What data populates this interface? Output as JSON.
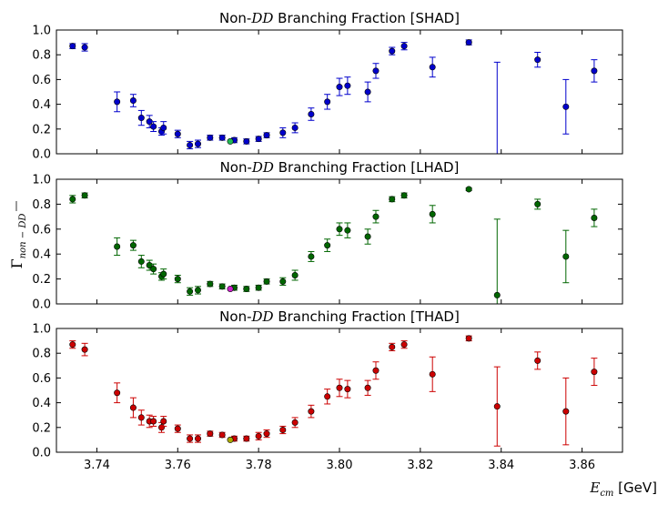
{
  "chart_data": [
    {
      "type": "scatter",
      "title": "Non-DD Branching Fraction [SHAD]",
      "title_main": "Non-",
      "title_math": "DD",
      "title_tail": " Branching Fraction [SHAD]",
      "color": "#0000cc",
      "xlim": [
        3.73,
        3.87
      ],
      "ylim": [
        0.0,
        1.0
      ],
      "yticks": [
        "0.0",
        "0.2",
        "0.4",
        "0.6",
        "0.8",
        "1.0"
      ],
      "highlight": {
        "x": 3.773,
        "y": 0.1,
        "color": "#22bb55"
      },
      "points": [
        {
          "x": 3.734,
          "y": 0.87,
          "err": 0.02
        },
        {
          "x": 3.737,
          "y": 0.86,
          "err": 0.03
        },
        {
          "x": 3.745,
          "y": 0.42,
          "err": 0.08
        },
        {
          "x": 3.749,
          "y": 0.43,
          "err": 0.05
        },
        {
          "x": 3.751,
          "y": 0.29,
          "err": 0.06
        },
        {
          "x": 3.753,
          "y": 0.26,
          "err": 0.05
        },
        {
          "x": 3.754,
          "y": 0.22,
          "err": 0.04
        },
        {
          "x": 3.756,
          "y": 0.18,
          "err": 0.03
        },
        {
          "x": 3.7565,
          "y": 0.21,
          "err": 0.05
        },
        {
          "x": 3.76,
          "y": 0.16,
          "err": 0.03
        },
        {
          "x": 3.763,
          "y": 0.07,
          "err": 0.03
        },
        {
          "x": 3.765,
          "y": 0.08,
          "err": 0.03
        },
        {
          "x": 3.768,
          "y": 0.13,
          "err": 0.02
        },
        {
          "x": 3.771,
          "y": 0.13,
          "err": 0.02
        },
        {
          "x": 3.774,
          "y": 0.11,
          "err": 0.02
        },
        {
          "x": 3.777,
          "y": 0.1,
          "err": 0.02
        },
        {
          "x": 3.78,
          "y": 0.12,
          "err": 0.02
        },
        {
          "x": 3.782,
          "y": 0.15,
          "err": 0.02
        },
        {
          "x": 3.786,
          "y": 0.17,
          "err": 0.04
        },
        {
          "x": 3.789,
          "y": 0.21,
          "err": 0.04
        },
        {
          "x": 3.793,
          "y": 0.32,
          "err": 0.05
        },
        {
          "x": 3.797,
          "y": 0.42,
          "err": 0.06
        },
        {
          "x": 3.8,
          "y": 0.54,
          "err": 0.07
        },
        {
          "x": 3.802,
          "y": 0.55,
          "err": 0.07
        },
        {
          "x": 3.807,
          "y": 0.5,
          "err": 0.08
        },
        {
          "x": 3.809,
          "y": 0.67,
          "err": 0.06
        },
        {
          "x": 3.813,
          "y": 0.83,
          "err": 0.03
        },
        {
          "x": 3.816,
          "y": 0.87,
          "err": 0.03
        },
        {
          "x": 3.823,
          "y": 0.7,
          "err": 0.08
        },
        {
          "x": 3.832,
          "y": 0.9,
          "err": 0.02
        },
        {
          "x": 3.839,
          "y": -0.1,
          "err": 0.84
        },
        {
          "x": 3.849,
          "y": 0.76,
          "err": 0.06
        },
        {
          "x": 3.856,
          "y": 0.38,
          "err": 0.22
        },
        {
          "x": 3.863,
          "y": 0.67,
          "err": 0.09
        }
      ]
    },
    {
      "type": "scatter",
      "title": "Non-DD Branching Fraction [LHAD]",
      "title_main": "Non-",
      "title_math": "DD",
      "title_tail": " Branching Fraction [LHAD]",
      "color": "#006600",
      "xlim": [
        3.73,
        3.87
      ],
      "ylim": [
        0.0,
        1.0
      ],
      "yticks": [
        "0.0",
        "0.2",
        "0.4",
        "0.6",
        "0.8",
        "1.0"
      ],
      "highlight": {
        "x": 3.773,
        "y": 0.12,
        "color": "#cc22cc"
      },
      "points": [
        {
          "x": 3.734,
          "y": 0.84,
          "err": 0.03
        },
        {
          "x": 3.737,
          "y": 0.87,
          "err": 0.02
        },
        {
          "x": 3.745,
          "y": 0.46,
          "err": 0.07
        },
        {
          "x": 3.749,
          "y": 0.47,
          "err": 0.04
        },
        {
          "x": 3.751,
          "y": 0.34,
          "err": 0.05
        },
        {
          "x": 3.753,
          "y": 0.31,
          "err": 0.04
        },
        {
          "x": 3.754,
          "y": 0.28,
          "err": 0.04
        },
        {
          "x": 3.756,
          "y": 0.22,
          "err": 0.03
        },
        {
          "x": 3.7565,
          "y": 0.24,
          "err": 0.04
        },
        {
          "x": 3.76,
          "y": 0.2,
          "err": 0.03
        },
        {
          "x": 3.763,
          "y": 0.1,
          "err": 0.03
        },
        {
          "x": 3.765,
          "y": 0.11,
          "err": 0.03
        },
        {
          "x": 3.768,
          "y": 0.16,
          "err": 0.02
        },
        {
          "x": 3.771,
          "y": 0.14,
          "err": 0.02
        },
        {
          "x": 3.774,
          "y": 0.13,
          "err": 0.02
        },
        {
          "x": 3.777,
          "y": 0.12,
          "err": 0.02
        },
        {
          "x": 3.78,
          "y": 0.13,
          "err": 0.02
        },
        {
          "x": 3.782,
          "y": 0.18,
          "err": 0.02
        },
        {
          "x": 3.786,
          "y": 0.18,
          "err": 0.03
        },
        {
          "x": 3.789,
          "y": 0.23,
          "err": 0.04
        },
        {
          "x": 3.793,
          "y": 0.38,
          "err": 0.04
        },
        {
          "x": 3.797,
          "y": 0.47,
          "err": 0.05
        },
        {
          "x": 3.8,
          "y": 0.6,
          "err": 0.05
        },
        {
          "x": 3.802,
          "y": 0.59,
          "err": 0.06
        },
        {
          "x": 3.807,
          "y": 0.54,
          "err": 0.06
        },
        {
          "x": 3.809,
          "y": 0.7,
          "err": 0.05
        },
        {
          "x": 3.813,
          "y": 0.84,
          "err": 0.02
        },
        {
          "x": 3.816,
          "y": 0.87,
          "err": 0.02
        },
        {
          "x": 3.823,
          "y": 0.72,
          "err": 0.07
        },
        {
          "x": 3.832,
          "y": 0.92,
          "err": 0.01
        },
        {
          "x": 3.839,
          "y": 0.07,
          "err": 0.61
        },
        {
          "x": 3.849,
          "y": 0.8,
          "err": 0.04
        },
        {
          "x": 3.856,
          "y": 0.38,
          "err": 0.21
        },
        {
          "x": 3.863,
          "y": 0.69,
          "err": 0.07
        }
      ]
    },
    {
      "type": "scatter",
      "title": "Non-DD Branching Fraction [THAD]",
      "title_main": "Non-",
      "title_math": "DD",
      "title_tail": " Branching Fraction [THAD]",
      "color": "#cc0000",
      "xlim": [
        3.73,
        3.87
      ],
      "ylim": [
        0.0,
        1.0
      ],
      "yticks": [
        "0.0",
        "0.2",
        "0.4",
        "0.6",
        "0.8",
        "1.0"
      ],
      "xticks": [
        "3.74",
        "3.76",
        "3.78",
        "3.80",
        "3.82",
        "3.84",
        "3.86"
      ],
      "highlight": {
        "x": 3.773,
        "y": 0.1,
        "color": "#aaaa00"
      },
      "points": [
        {
          "x": 3.734,
          "y": 0.87,
          "err": 0.03
        },
        {
          "x": 3.737,
          "y": 0.83,
          "err": 0.05
        },
        {
          "x": 3.745,
          "y": 0.48,
          "err": 0.08
        },
        {
          "x": 3.749,
          "y": 0.36,
          "err": 0.08
        },
        {
          "x": 3.751,
          "y": 0.28,
          "err": 0.06
        },
        {
          "x": 3.753,
          "y": 0.25,
          "err": 0.05
        },
        {
          "x": 3.754,
          "y": 0.25,
          "err": 0.04
        },
        {
          "x": 3.756,
          "y": 0.2,
          "err": 0.04
        },
        {
          "x": 3.7565,
          "y": 0.25,
          "err": 0.04
        },
        {
          "x": 3.76,
          "y": 0.19,
          "err": 0.03
        },
        {
          "x": 3.763,
          "y": 0.11,
          "err": 0.03
        },
        {
          "x": 3.765,
          "y": 0.11,
          "err": 0.03
        },
        {
          "x": 3.768,
          "y": 0.15,
          "err": 0.02
        },
        {
          "x": 3.771,
          "y": 0.14,
          "err": 0.02
        },
        {
          "x": 3.774,
          "y": 0.11,
          "err": 0.02
        },
        {
          "x": 3.777,
          "y": 0.11,
          "err": 0.02
        },
        {
          "x": 3.78,
          "y": 0.13,
          "err": 0.03
        },
        {
          "x": 3.782,
          "y": 0.15,
          "err": 0.03
        },
        {
          "x": 3.786,
          "y": 0.18,
          "err": 0.03
        },
        {
          "x": 3.789,
          "y": 0.24,
          "err": 0.04
        },
        {
          "x": 3.793,
          "y": 0.33,
          "err": 0.05
        },
        {
          "x": 3.797,
          "y": 0.45,
          "err": 0.06
        },
        {
          "x": 3.8,
          "y": 0.52,
          "err": 0.07
        },
        {
          "x": 3.802,
          "y": 0.51,
          "err": 0.07
        },
        {
          "x": 3.807,
          "y": 0.52,
          "err": 0.06
        },
        {
          "x": 3.809,
          "y": 0.66,
          "err": 0.07
        },
        {
          "x": 3.813,
          "y": 0.85,
          "err": 0.03
        },
        {
          "x": 3.816,
          "y": 0.87,
          "err": 0.03
        },
        {
          "x": 3.823,
          "y": 0.63,
          "err": 0.14
        },
        {
          "x": 3.832,
          "y": 0.92,
          "err": 0.02
        },
        {
          "x": 3.839,
          "y": 0.37,
          "err": 0.32
        },
        {
          "x": 3.849,
          "y": 0.74,
          "err": 0.07
        },
        {
          "x": 3.856,
          "y": 0.33,
          "err": 0.27
        },
        {
          "x": 3.863,
          "y": 0.65,
          "err": 0.11
        }
      ]
    }
  ],
  "ylabel": "Γ_{non−DD̄}",
  "ylabel_main": "Γ",
  "ylabel_sub": "non − DD",
  "xlabel": "E_cm [GeV]",
  "xlabel_main": "E",
  "xlabel_sub": "cm",
  "xlabel_unit": " [GeV]"
}
